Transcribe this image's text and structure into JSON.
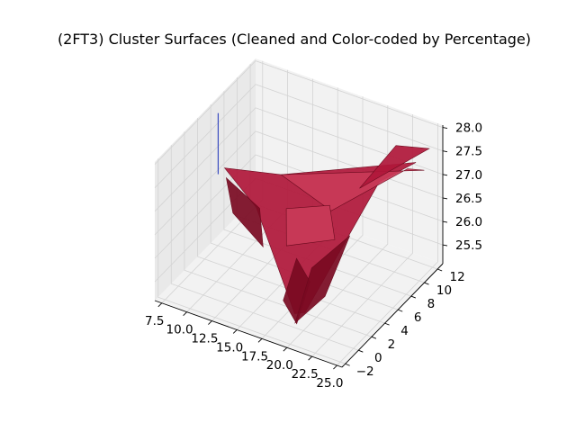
{
  "chart_data": {
    "type": "surface3d",
    "title": "(2FT3) Cluster Surfaces (Cleaned and Color-coded by Percentage)",
    "x_ticks": [
      "7.5",
      "10.0",
      "12.5",
      "15.0",
      "17.5",
      "20.0",
      "22.5",
      "25.0"
    ],
    "y_ticks": [
      "−2",
      "0",
      "2",
      "4",
      "6",
      "8",
      "10",
      "12"
    ],
    "z_ticks": [
      "25.5",
      "26.0",
      "26.5",
      "27.0",
      "27.5",
      "28.0"
    ],
    "x_range": [
      6.8,
      25.5
    ],
    "y_range": [
      -2.5,
      12.8
    ],
    "z_range": [
      25.1,
      28.05
    ],
    "grid": true,
    "colors": {
      "surface": "#b0173a",
      "surface_dark": "#7a0a22",
      "surface_light": "#c93a58",
      "edge": "#6b0a1e",
      "outlier_line": "#3b4cc0",
      "pane": "#f2f2f2",
      "grid": "#d3d3d3"
    },
    "surface_polygons": [
      {
        "shade": "surface",
        "pts": [
          [
            8.5,
            5.5,
            26.9
          ],
          [
            12.0,
            5.0,
            26.4
          ],
          [
            18.8,
            0.5,
            25.3
          ],
          [
            20.5,
            -0.5,
            25.6
          ],
          [
            22.0,
            8.5,
            27.2
          ],
          [
            24.0,
            11.0,
            27.4
          ],
          [
            12.5,
            8.0,
            26.7
          ]
        ]
      },
      {
        "shade": "surface_light",
        "pts": [
          [
            12.5,
            8.0,
            26.7
          ],
          [
            18.5,
            6.5,
            26.6
          ],
          [
            23.5,
            10.5,
            27.3
          ],
          [
            24.5,
            11.5,
            27.2
          ]
        ]
      },
      {
        "shade": "surface_dark",
        "pts": [
          [
            9.0,
            5.0,
            26.8
          ],
          [
            10.0,
            4.5,
            26.2
          ],
          [
            14.0,
            3.0,
            26.0
          ],
          [
            13.0,
            4.0,
            26.6
          ]
        ]
      },
      {
        "shade": "surface_dark",
        "pts": [
          [
            17.0,
            1.5,
            25.3
          ],
          [
            19.0,
            0.5,
            25.1
          ],
          [
            20.0,
            1.0,
            26.0
          ],
          [
            18.0,
            2.0,
            26.2
          ]
        ]
      },
      {
        "shade": "surface_dark",
        "pts": [
          [
            19.5,
            -0.5,
            25.3
          ],
          [
            21.5,
            1.0,
            25.8
          ],
          [
            22.0,
            4.0,
            26.7
          ],
          [
            20.5,
            0.5,
            26.4
          ]
        ]
      },
      {
        "shade": "surface",
        "pts": [
          [
            21.0,
            7.0,
            27.2
          ],
          [
            24.0,
            10.0,
            27.6
          ],
          [
            25.0,
            11.5,
            27.7
          ],
          [
            23.0,
            9.5,
            27.9
          ]
        ]
      },
      {
        "shade": "surface_light",
        "pts": [
          [
            15.0,
            5.0,
            26.6
          ],
          [
            19.0,
            5.5,
            26.9
          ],
          [
            20.5,
            4.0,
            26.5
          ],
          [
            16.0,
            3.5,
            26.1
          ]
        ]
      }
    ],
    "outlier_segment": [
      [
        7.8,
        5.6,
        26.7
      ],
      [
        7.8,
        5.6,
        28.0
      ]
    ]
  }
}
